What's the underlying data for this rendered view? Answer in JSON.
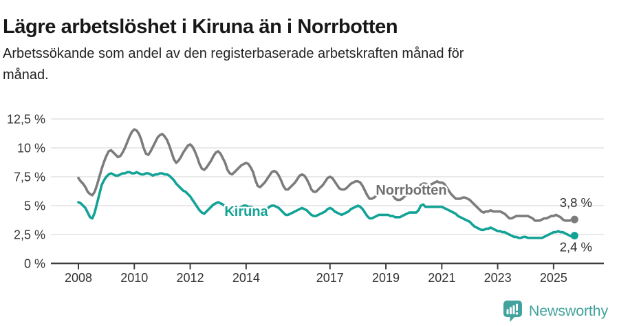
{
  "header": {
    "title": "Lägre arbetslöshet i Kiruna än i Norrbotten",
    "subtitle": "Arbetssökande som andel av den registerbaserade arbetskraften månad för månad."
  },
  "chart_data": {
    "type": "line",
    "title": "Lägre arbetslöshet i Kiruna än i Norrbotten",
    "subtitle": "Arbetssökande som andel av den registerbaserade arbetskraften månad för månad.",
    "unit": "%",
    "frequency": "monthly",
    "x_start": "2008-01",
    "x_end": "2025-10",
    "ylim": [
      0,
      12.5
    ],
    "grid": "horizontal",
    "legend_position": "inline-labels",
    "x_tick_years": [
      2008,
      2010,
      2012,
      2014,
      2017,
      2019,
      2021,
      2023,
      2025
    ],
    "y_ticks": [
      {
        "value": 0,
        "label": "0 %"
      },
      {
        "value": 2.5,
        "label": "2,5 %"
      },
      {
        "value": 5,
        "label": "5 %"
      },
      {
        "value": 7.5,
        "label": "7,5 %"
      },
      {
        "value": 10,
        "label": "10 %"
      },
      {
        "value": 12.5,
        "label": "12,5 %"
      }
    ],
    "axis_color": "#3d3d3d",
    "gridline_color": "#dcdcdc",
    "series": [
      {
        "name": "Norrbotten",
        "color": "#7c7c7c",
        "label_color": "#6f6f6f",
        "end_label": "3,8 %",
        "values": [
          7.4,
          7.1,
          6.9,
          6.6,
          6.2,
          6.0,
          5.9,
          6.2,
          6.8,
          7.5,
          8.2,
          8.8,
          9.3,
          9.7,
          9.8,
          9.6,
          9.4,
          9.2,
          9.3,
          9.6,
          10.0,
          10.5,
          11.0,
          11.4,
          11.6,
          11.5,
          11.2,
          10.7,
          10.0,
          9.5,
          9.4,
          9.7,
          10.1,
          10.5,
          10.9,
          11.1,
          11.2,
          11.0,
          10.7,
          10.2,
          9.6,
          9.0,
          8.7,
          8.9,
          9.2,
          9.6,
          9.9,
          10.2,
          10.3,
          10.1,
          9.7,
          9.2,
          8.6,
          8.2,
          8.1,
          8.3,
          8.6,
          8.9,
          9.3,
          9.6,
          9.7,
          9.5,
          9.1,
          8.7,
          8.1,
          7.8,
          7.7,
          7.9,
          8.1,
          8.3,
          8.5,
          8.6,
          8.7,
          8.6,
          8.3,
          7.9,
          7.2,
          6.7,
          6.6,
          6.8,
          7.0,
          7.3,
          7.6,
          7.9,
          8.0,
          7.9,
          7.6,
          7.2,
          6.7,
          6.4,
          6.4,
          6.6,
          6.8,
          7.0,
          7.3,
          7.6,
          7.7,
          7.6,
          7.3,
          6.9,
          6.4,
          6.2,
          6.2,
          6.4,
          6.6,
          6.8,
          7.1,
          7.4,
          7.5,
          7.4,
          7.1,
          6.8,
          6.5,
          6.4,
          6.4,
          6.5,
          6.7,
          6.9,
          7.0,
          7.1,
          7.1,
          7.0,
          6.7,
          6.3,
          5.9,
          5.6,
          5.6,
          5.7,
          5.9,
          6.1,
          6.3,
          6.4,
          6.5,
          6.4,
          6.2,
          5.9,
          5.6,
          5.5,
          5.5,
          5.6,
          5.8,
          5.9,
          6.1,
          6.2,
          6.3,
          6.3,
          6.5,
          6.8,
          6.9,
          6.9,
          6.8,
          6.8,
          6.9,
          7.0,
          7.1,
          7.0,
          7.0,
          6.9,
          6.6,
          6.3,
          6.0,
          5.8,
          5.6,
          5.6,
          5.6,
          5.7,
          5.7,
          5.6,
          5.5,
          5.3,
          5.1,
          4.9,
          4.7,
          4.5,
          4.4,
          4.5,
          4.5,
          4.6,
          4.5,
          4.5,
          4.5,
          4.5,
          4.4,
          4.3,
          4.1,
          3.9,
          3.9,
          4.0,
          4.1,
          4.1,
          4.1,
          4.1,
          4.1,
          4.1,
          4.0,
          3.9,
          3.7,
          3.7,
          3.7,
          3.8,
          3.9,
          3.9,
          4.0,
          4.1,
          4.1,
          4.2,
          4.1,
          4.0,
          3.8,
          3.7,
          3.7,
          3.7,
          3.8,
          3.8
        ]
      },
      {
        "name": "Kiruna",
        "color": "#12a296",
        "label_color": "#12a296",
        "end_label": "2,4 %",
        "values": [
          5.3,
          5.2,
          5.0,
          4.8,
          4.4,
          4.0,
          3.9,
          4.4,
          5.2,
          6.0,
          6.8,
          7.2,
          7.5,
          7.7,
          7.8,
          7.7,
          7.6,
          7.6,
          7.7,
          7.8,
          7.8,
          7.9,
          7.9,
          7.8,
          7.8,
          7.9,
          7.8,
          7.7,
          7.7,
          7.8,
          7.8,
          7.7,
          7.6,
          7.7,
          7.7,
          7.8,
          7.8,
          7.7,
          7.7,
          7.6,
          7.4,
          7.2,
          6.9,
          6.7,
          6.5,
          6.3,
          6.2,
          6.0,
          5.8,
          5.5,
          5.2,
          4.9,
          4.6,
          4.4,
          4.3,
          4.5,
          4.7,
          4.9,
          5.1,
          5.2,
          5.3,
          5.2,
          5.1,
          4.9,
          4.6,
          4.4,
          4.4,
          4.5,
          4.6,
          4.8,
          4.9,
          5.0,
          5.0,
          4.9,
          4.9,
          4.8,
          4.6,
          4.4,
          4.4,
          4.5,
          4.6,
          4.7,
          4.9,
          5.0,
          5.0,
          4.9,
          4.8,
          4.6,
          4.4,
          4.2,
          4.2,
          4.3,
          4.4,
          4.5,
          4.6,
          4.7,
          4.8,
          4.7,
          4.6,
          4.4,
          4.2,
          4.1,
          4.1,
          4.2,
          4.3,
          4.4,
          4.5,
          4.7,
          4.8,
          4.7,
          4.5,
          4.4,
          4.3,
          4.2,
          4.3,
          4.4,
          4.5,
          4.7,
          4.8,
          4.9,
          5.0,
          4.9,
          4.7,
          4.4,
          4.1,
          3.9,
          3.9,
          4.0,
          4.1,
          4.2,
          4.2,
          4.2,
          4.2,
          4.2,
          4.1,
          4.1,
          4.0,
          4.0,
          4.0,
          4.1,
          4.2,
          4.3,
          4.4,
          4.4,
          4.4,
          4.4,
          4.6,
          5.0,
          5.1,
          4.9,
          4.9,
          4.9,
          4.9,
          4.9,
          4.9,
          4.9,
          4.9,
          4.8,
          4.7,
          4.6,
          4.5,
          4.4,
          4.3,
          4.1,
          4.0,
          3.9,
          3.8,
          3.7,
          3.6,
          3.4,
          3.2,
          3.1,
          3.0,
          2.9,
          2.9,
          3.0,
          3.0,
          3.1,
          3.0,
          2.9,
          2.8,
          2.8,
          2.7,
          2.7,
          2.6,
          2.5,
          2.4,
          2.3,
          2.3,
          2.2,
          2.2,
          2.3,
          2.3,
          2.2,
          2.2,
          2.2,
          2.2,
          2.2,
          2.2,
          2.2,
          2.3,
          2.4,
          2.5,
          2.6,
          2.7,
          2.7,
          2.8,
          2.7,
          2.7,
          2.6,
          2.5,
          2.4,
          2.3,
          2.4
        ]
      }
    ]
  },
  "footer": {
    "brand": "Newsworthy",
    "logo_color": "#42a29d"
  }
}
